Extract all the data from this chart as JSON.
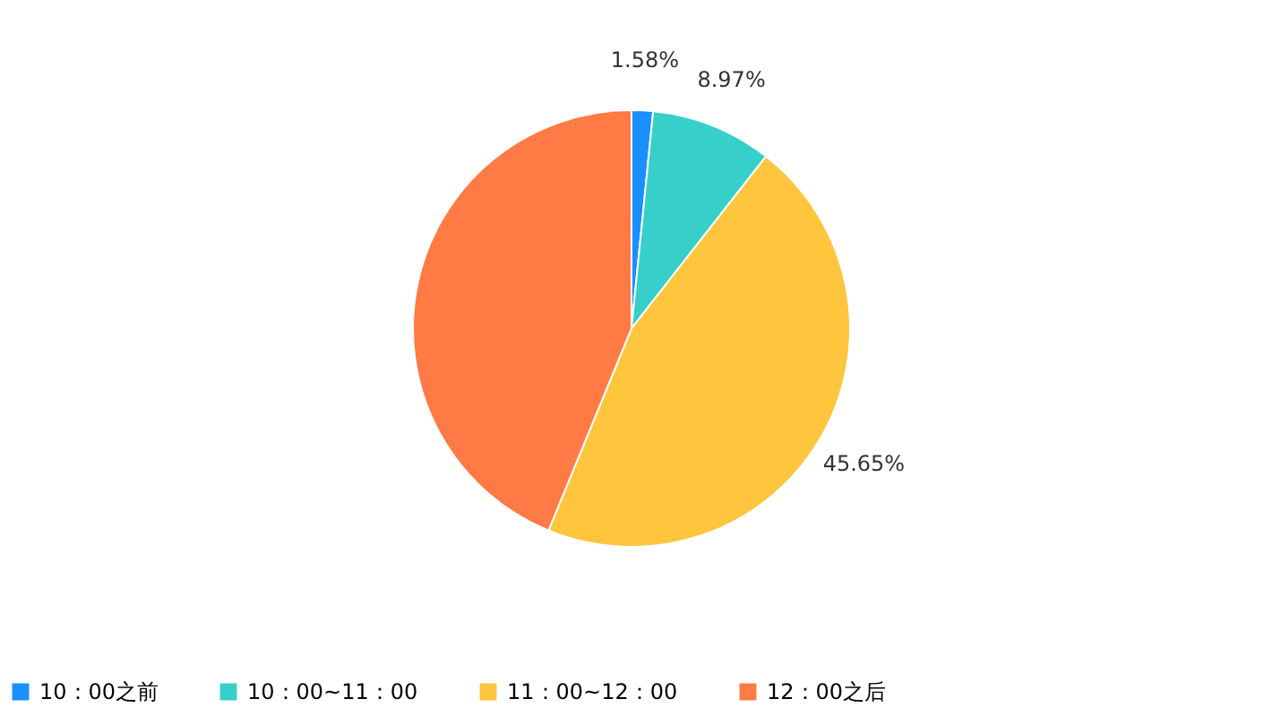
{
  "chart_data": {
    "type": "pie",
    "categories": [
      "10：00之前",
      "10：00~11：00",
      "11：00~12：00",
      "12：00之后"
    ],
    "values": [
      1.58,
      8.97,
      45.65,
      43.8
    ],
    "colors": [
      "#1890ff",
      "#36cfc9",
      "#ffc53d",
      "#ff7a45"
    ],
    "value_labels": [
      "1.58%",
      "8.97%",
      "45.65%",
      null
    ],
    "legend": "bottom"
  }
}
